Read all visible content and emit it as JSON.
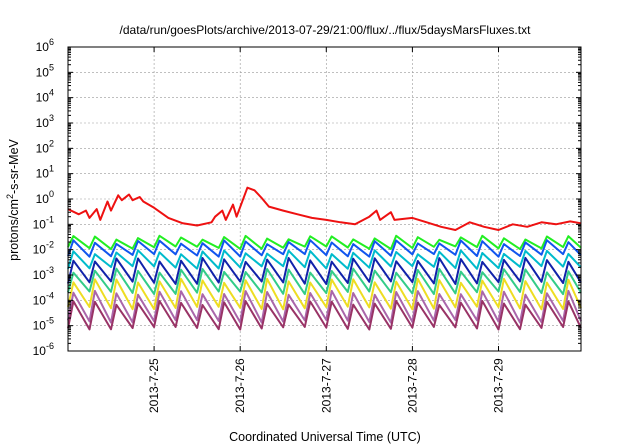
{
  "chart_data": {
    "type": "line",
    "title": "/data/run/goesPlots/archive/2013-07-29/21:00/flux/../flux/5daysMarsFluxes.txt",
    "xlabel": "Coordinated Universal Time (UTC)",
    "ylabel_parts": [
      "protons/cm",
      "2",
      "-s-sr-MeV"
    ],
    "y_scale": "log",
    "ylim": [
      1e-06,
      1000000.0
    ],
    "y_ticks": [
      {
        "base": "10",
        "exp": "-6",
        "value": 1e-06
      },
      {
        "base": "10",
        "exp": "-5",
        "value": 1e-05
      },
      {
        "base": "10",
        "exp": "-4",
        "value": 0.0001
      },
      {
        "base": "10",
        "exp": "-3",
        "value": 0.001
      },
      {
        "base": "10",
        "exp": "-2",
        "value": 0.01
      },
      {
        "base": "10",
        "exp": "-1",
        "value": 0.1
      },
      {
        "base": "10",
        "exp": "0",
        "value": 1
      },
      {
        "base": "10",
        "exp": "1",
        "value": 10
      },
      {
        "base": "10",
        "exp": "2",
        "value": 100
      },
      {
        "base": "10",
        "exp": "3",
        "value": 1000
      },
      {
        "base": "10",
        "exp": "4",
        "value": 10000
      },
      {
        "base": "10",
        "exp": "5",
        "value": 100000
      },
      {
        "base": "10",
        "exp": "6",
        "value": 1000000
      }
    ],
    "x_ticks": [
      "2013-7-25",
      "2013-7-26",
      "2013-7-27",
      "2013-7-28",
      "2013-7-29"
    ],
    "xlim": [
      "2013-07-24T00:00",
      "2013-07-29T23:00"
    ],
    "grid": true,
    "series": [
      {
        "color": "#ee1111",
        "x": [
          "2013-07-24T00:00",
          "2013-07-24T03:00",
          "2013-07-24T05:00",
          "2013-07-24T06:00",
          "2013-07-24T08:00",
          "2013-07-24T09:00",
          "2013-07-24T11:00",
          "2013-07-24T12:00",
          "2013-07-24T14:00",
          "2013-07-24T15:00",
          "2013-07-24T17:00",
          "2013-07-24T18:00",
          "2013-07-24T20:00",
          "2013-07-24T21:00",
          "2013-07-25T00:00",
          "2013-07-25T04:00",
          "2013-07-25T08:00",
          "2013-07-25T12:00",
          "2013-07-25T16:00",
          "2013-07-25T17:00",
          "2013-07-25T19:00",
          "2013-07-25T20:00",
          "2013-07-25T22:00",
          "2013-07-25T23:00",
          "2013-07-26T02:00",
          "2013-07-26T04:00",
          "2013-07-26T06:00",
          "2013-07-26T08:00",
          "2013-07-26T12:00",
          "2013-07-26T16:00",
          "2013-07-26T20:00",
          "2013-07-27T00:00",
          "2013-07-27T04:00",
          "2013-07-27T08:00",
          "2013-07-27T12:00",
          "2013-07-27T14:00",
          "2013-07-27T15:00",
          "2013-07-27T18:00",
          "2013-07-27T19:00",
          "2013-07-28T00:00",
          "2013-07-28T04:00",
          "2013-07-28T08:00",
          "2013-07-28T12:00",
          "2013-07-28T16:00",
          "2013-07-28T20:00",
          "2013-07-29T00:00",
          "2013-07-29T04:00",
          "2013-07-29T08:00",
          "2013-07-29T12:00",
          "2013-07-29T16:00",
          "2013-07-29T20:00",
          "2013-07-29T23:00"
        ],
        "y": [
          0.4,
          0.25,
          0.35,
          0.18,
          0.4,
          0.15,
          0.8,
          0.35,
          1.4,
          0.9,
          1.5,
          0.9,
          1.2,
          0.8,
          0.45,
          0.18,
          0.11,
          0.09,
          0.12,
          0.2,
          0.35,
          0.15,
          0.6,
          0.2,
          2.8,
          2.2,
          1.1,
          0.5,
          0.35,
          0.25,
          0.18,
          0.15,
          0.12,
          0.1,
          0.2,
          0.35,
          0.15,
          0.3,
          0.15,
          0.18,
          0.12,
          0.08,
          0.06,
          0.12,
          0.08,
          0.06,
          0.1,
          0.08,
          0.12,
          0.1,
          0.13,
          0.11
        ]
      },
      {
        "color": "#22ee22",
        "y_base": 0.012,
        "y_peak": 0.03,
        "period_hours": 6
      },
      {
        "color": "#1155ee",
        "y_base": 0.006,
        "y_peak": 0.02,
        "period_hours": 6
      },
      {
        "color": "#00bbcc",
        "y_base": 0.002,
        "y_peak": 0.008,
        "period_hours": 6
      },
      {
        "color": "#1122aa",
        "y_base": 0.0005,
        "y_peak": 0.004,
        "period_hours": 6
      },
      {
        "color": "#33cc88",
        "y_base": 0.0002,
        "y_peak": 0.0015,
        "period_hours": 6
      },
      {
        "color": "#eedd22",
        "y_base": 5e-05,
        "y_peak": 0.0006,
        "period_hours": 6
      },
      {
        "color": "#aa66aa",
        "y_base": 1.5e-05,
        "y_peak": 0.0002,
        "period_hours": 6
      },
      {
        "color": "#993366",
        "y_base": 8e-06,
        "y_peak": 8e-05,
        "period_hours": 6
      }
    ]
  }
}
